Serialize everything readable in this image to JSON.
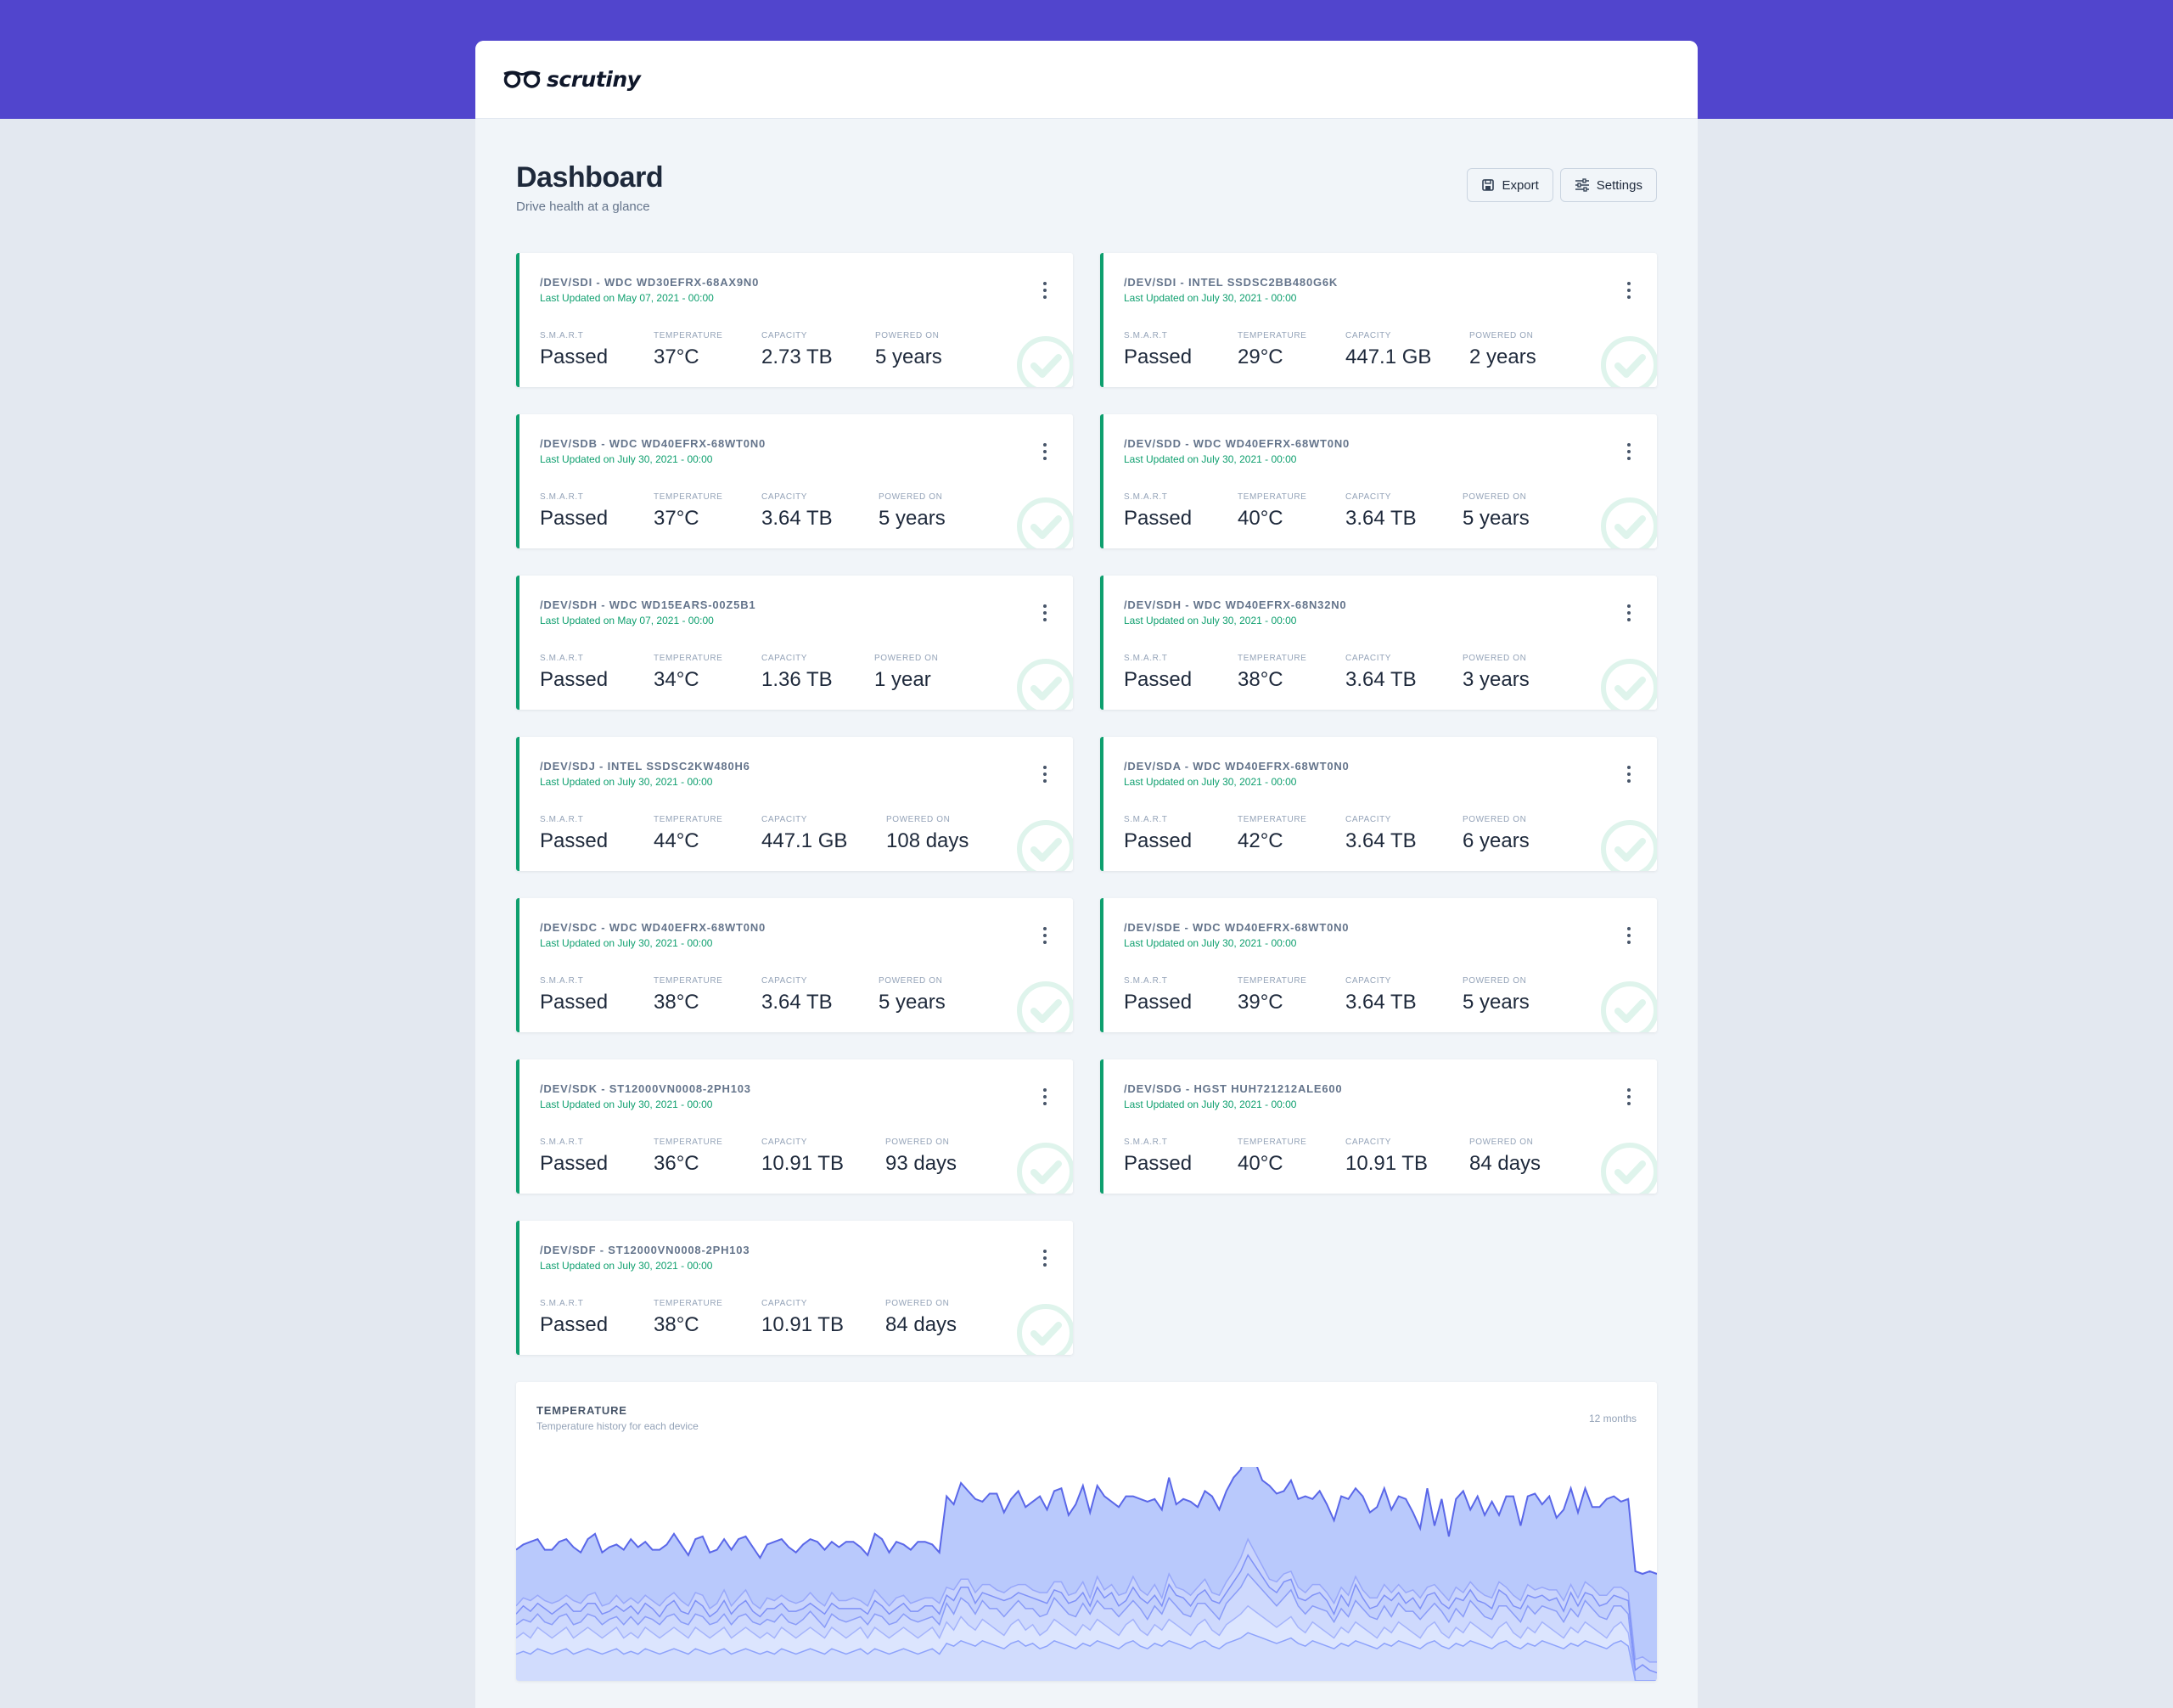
{
  "app": {
    "name": "scrutiny"
  },
  "page": {
    "title": "Dashboard",
    "subtitle": "Drive health at a glance"
  },
  "toolbar": {
    "export_label": "Export",
    "settings_label": "Settings"
  },
  "stat_labels": {
    "smart": "S.M.A.R.T",
    "temperature": "TEMPERATURE",
    "capacity": "CAPACITY",
    "powered_on": "POWERED ON"
  },
  "colors": {
    "accent": "#5145cd",
    "passed": "#0e9f6e",
    "chart_fill": "#a4bafc",
    "chart_line": "#6875f5"
  },
  "drives": [
    {
      "title": "/DEV/SDI - WDC WD30EFRX-68AX9N0",
      "updated": "Last Updated on May 07, 2021 - 00:00",
      "smart": "Passed",
      "temperature": "37°C",
      "capacity": "2.73 TB",
      "powered_on": "5 years"
    },
    {
      "title": "/DEV/SDI - INTEL SSDSC2BB480G6K",
      "updated": "Last Updated on July 30, 2021 - 00:00",
      "smart": "Passed",
      "temperature": "29°C",
      "capacity": "447.1 GB",
      "powered_on": "2 years"
    },
    {
      "title": "/DEV/SDB - WDC WD40EFRX-68WT0N0",
      "updated": "Last Updated on July 30, 2021 - 00:00",
      "smart": "Passed",
      "temperature": "37°C",
      "capacity": "3.64 TB",
      "powered_on": "5 years"
    },
    {
      "title": "/DEV/SDD - WDC WD40EFRX-68WT0N0",
      "updated": "Last Updated on July 30, 2021 - 00:00",
      "smart": "Passed",
      "temperature": "40°C",
      "capacity": "3.64 TB",
      "powered_on": "5 years"
    },
    {
      "title": "/DEV/SDH - WDC WD15EARS-00Z5B1",
      "updated": "Last Updated on May 07, 2021 - 00:00",
      "smart": "Passed",
      "temperature": "34°C",
      "capacity": "1.36 TB",
      "powered_on": "1 year"
    },
    {
      "title": "/DEV/SDH - WDC WD40EFRX-68N32N0",
      "updated": "Last Updated on July 30, 2021 - 00:00",
      "smart": "Passed",
      "temperature": "38°C",
      "capacity": "3.64 TB",
      "powered_on": "3 years"
    },
    {
      "title": "/DEV/SDJ - INTEL SSDSC2KW480H6",
      "updated": "Last Updated on July 30, 2021 - 00:00",
      "smart": "Passed",
      "temperature": "44°C",
      "capacity": "447.1 GB",
      "powered_on": "108 days"
    },
    {
      "title": "/DEV/SDA - WDC WD40EFRX-68WT0N0",
      "updated": "Last Updated on July 30, 2021 - 00:00",
      "smart": "Passed",
      "temperature": "42°C",
      "capacity": "3.64 TB",
      "powered_on": "6 years"
    },
    {
      "title": "/DEV/SDC - WDC WD40EFRX-68WT0N0",
      "updated": "Last Updated on July 30, 2021 - 00:00",
      "smart": "Passed",
      "temperature": "38°C",
      "capacity": "3.64 TB",
      "powered_on": "5 years"
    },
    {
      "title": "/DEV/SDE - WDC WD40EFRX-68WT0N0",
      "updated": "Last Updated on July 30, 2021 - 00:00",
      "smart": "Passed",
      "temperature": "39°C",
      "capacity": "3.64 TB",
      "powered_on": "5 years"
    },
    {
      "title": "/DEV/SDK - ST12000VN0008-2PH103",
      "updated": "Last Updated on July 30, 2021 - 00:00",
      "smart": "Passed",
      "temperature": "36°C",
      "capacity": "10.91 TB",
      "powered_on": "93 days"
    },
    {
      "title": "/DEV/SDG - HGST HUH721212ALE600",
      "updated": "Last Updated on July 30, 2021 - 00:00",
      "smart": "Passed",
      "temperature": "40°C",
      "capacity": "10.91 TB",
      "powered_on": "84 days"
    },
    {
      "title": "/DEV/SDF - ST12000VN0008-2PH103",
      "updated": "Last Updated on July 30, 2021 - 00:00",
      "smart": "Passed",
      "temperature": "38°C",
      "capacity": "10.91 TB",
      "powered_on": "84 days"
    }
  ],
  "temperature_panel": {
    "title": "TEMPERATURE",
    "subtitle": "Temperature history for each device",
    "range_label": "12 months"
  },
  "chart_data": {
    "type": "area",
    "title": "TEMPERATURE",
    "subtitle": "Temperature history for each device",
    "stacked": true,
    "grid": false,
    "legend": "none",
    "points": 160,
    "series": [
      {
        "values": [
          10,
          11,
          10,
          12,
          11,
          10,
          11,
          12,
          10,
          11,
          12,
          11,
          10,
          11,
          12,
          10,
          11,
          10,
          12,
          11,
          10,
          11,
          12,
          11,
          10,
          12,
          11,
          10,
          11,
          12,
          10,
          11,
          12,
          11,
          10,
          11,
          10,
          12,
          11,
          10,
          11,
          12,
          11,
          10,
          12,
          11,
          10,
          11,
          12,
          10,
          12,
          11,
          10,
          11,
          12,
          11,
          10,
          11,
          12,
          10,
          14,
          13,
          15,
          14,
          13,
          15,
          14,
          13,
          12,
          14,
          15,
          13,
          14,
          12,
          13,
          15,
          14,
          13,
          12,
          14,
          13,
          15,
          14,
          13,
          12,
          14,
          15,
          13,
          12,
          14,
          13,
          15,
          14,
          13,
          12,
          14,
          15,
          13,
          12,
          14,
          15,
          16,
          18,
          17,
          16,
          15,
          14,
          15,
          16,
          14,
          13,
          15,
          14,
          13,
          12,
          14,
          13,
          15,
          14,
          13,
          12,
          14,
          13,
          15,
          14,
          13,
          12,
          14,
          15,
          13,
          12,
          14,
          13,
          15,
          14,
          13,
          12,
          14,
          15,
          13,
          12,
          14,
          13,
          15,
          14,
          13,
          12,
          14,
          13,
          15,
          14,
          13,
          12,
          14,
          15,
          13
        ]
      },
      {
        "values": [
          6,
          7,
          6,
          8,
          7,
          6,
          7,
          8,
          6,
          7,
          8,
          7,
          6,
          7,
          8,
          6,
          7,
          6,
          8,
          7,
          6,
          7,
          8,
          7,
          6,
          8,
          7,
          6,
          7,
          8,
          6,
          7,
          8,
          7,
          6,
          7,
          6,
          8,
          7,
          6,
          7,
          8,
          7,
          6,
          8,
          7,
          6,
          7,
          8,
          6,
          8,
          7,
          6,
          7,
          8,
          7,
          6,
          7,
          8,
          6,
          8,
          6,
          9,
          7,
          6,
          8,
          7,
          6,
          5,
          7,
          8,
          6,
          7,
          5,
          6,
          8,
          7,
          6,
          5,
          7,
          6,
          8,
          7,
          6,
          5,
          7,
          8,
          6,
          5,
          7,
          6,
          8,
          7,
          6,
          5,
          7,
          8,
          6,
          5,
          7,
          8,
          9,
          10,
          9,
          8,
          7,
          6,
          7,
          8,
          6,
          5,
          7,
          6,
          5,
          4,
          6,
          5,
          7,
          6,
          5,
          4,
          6,
          5,
          7,
          6,
          5,
          4,
          6,
          7,
          5,
          4,
          6,
          5,
          7,
          6,
          5,
          4,
          6,
          7,
          5,
          4,
          6,
          5,
          7,
          6,
          5,
          4,
          6,
          5,
          7,
          6,
          5,
          4,
          6,
          7,
          5
        ]
      },
      {
        "values": [
          5,
          5,
          6,
          5,
          4,
          5,
          6,
          5,
          5,
          4,
          5,
          6,
          5,
          5,
          4,
          5,
          6,
          5,
          4,
          5,
          5,
          6,
          5,
          4,
          5,
          5,
          6,
          5,
          4,
          5,
          5,
          6,
          5,
          4,
          5,
          5,
          6,
          5,
          4,
          5,
          5,
          6,
          5,
          4,
          5,
          5,
          6,
          5,
          4,
          5,
          5,
          6,
          5,
          4,
          5,
          5,
          6,
          5,
          4,
          5,
          7,
          6,
          7,
          8,
          6,
          7,
          6,
          8,
          7,
          6,
          7,
          8,
          6,
          7,
          6,
          8,
          7,
          6,
          7,
          8,
          6,
          7,
          6,
          8,
          7,
          6,
          7,
          8,
          6,
          7,
          6,
          8,
          7,
          6,
          7,
          8,
          6,
          7,
          6,
          8,
          9,
          10,
          12,
          11,
          10,
          9,
          8,
          9,
          10,
          8,
          7,
          6,
          7,
          8,
          6,
          7,
          6,
          8,
          7,
          6,
          7,
          8,
          6,
          7,
          6,
          8,
          7,
          6,
          7,
          8,
          6,
          7,
          6,
          8,
          7,
          6,
          7,
          8,
          6,
          7,
          6,
          8,
          7,
          6,
          7,
          8,
          6,
          7,
          6,
          8,
          7,
          6,
          7,
          8,
          6,
          7
        ]
      },
      {
        "values": [
          4,
          5,
          4,
          4,
          5,
          4,
          3,
          4,
          5,
          4,
          4,
          5,
          4,
          3,
          4,
          5,
          4,
          4,
          5,
          4,
          3,
          4,
          5,
          4,
          4,
          5,
          4,
          3,
          4,
          5,
          4,
          4,
          5,
          4,
          3,
          4,
          5,
          4,
          4,
          5,
          4,
          3,
          4,
          5,
          4,
          4,
          5,
          4,
          3,
          4,
          5,
          4,
          4,
          5,
          4,
          3,
          4,
          5,
          4,
          4,
          3,
          5,
          4,
          6,
          4,
          3,
          5,
          4,
          6,
          4,
          3,
          5,
          4,
          6,
          4,
          3,
          5,
          4,
          6,
          4,
          3,
          5,
          4,
          6,
          4,
          3,
          5,
          4,
          6,
          4,
          3,
          5,
          4,
          6,
          4,
          3,
          5,
          4,
          6,
          4,
          5,
          6,
          7,
          6,
          5,
          4,
          5,
          6,
          4,
          3,
          5,
          4,
          6,
          4,
          3,
          5,
          4,
          6,
          4,
          3,
          5,
          4,
          6,
          4,
          3,
          5,
          4,
          6,
          4,
          3,
          5,
          4,
          6,
          4,
          3,
          5,
          4,
          6,
          4,
          3,
          5,
          4,
          6,
          4,
          3,
          5,
          4,
          6,
          4,
          3,
          5,
          4,
          6,
          4,
          3,
          5,
          4,
          6,
          4,
          3
        ]
      },
      {
        "values": [
          3,
          3,
          4,
          3,
          3,
          4,
          3,
          3,
          4,
          3,
          3,
          4,
          3,
          3,
          4,
          3,
          3,
          4,
          3,
          3,
          4,
          3,
          3,
          4,
          3,
          3,
          4,
          3,
          3,
          4,
          3,
          3,
          4,
          3,
          3,
          4,
          3,
          3,
          4,
          3,
          3,
          4,
          3,
          3,
          4,
          3,
          3,
          4,
          3,
          3,
          4,
          3,
          3,
          4,
          3,
          3,
          4,
          3,
          3,
          4,
          3,
          4,
          3,
          3,
          4,
          3,
          4,
          3,
          3,
          4,
          3,
          4,
          3,
          3,
          4,
          3,
          4,
          3,
          3,
          4,
          3,
          4,
          3,
          3,
          4,
          3,
          4,
          3,
          3,
          4,
          3,
          4,
          3,
          3,
          4,
          3,
          4,
          3,
          3,
          4,
          4,
          5,
          6,
          5,
          4,
          3,
          4,
          3,
          3,
          4,
          3,
          4,
          3,
          3,
          4,
          3,
          4,
          3,
          3,
          4,
          3,
          4,
          3,
          3,
          4,
          3,
          4,
          3,
          3,
          4,
          3,
          4,
          3,
          3,
          4,
          3,
          4,
          3,
          3,
          4,
          3,
          4,
          3,
          3,
          4,
          3,
          4,
          3,
          3,
          4,
          3,
          4,
          3,
          3,
          4,
          3,
          4,
          3,
          3,
          4
        ]
      },
      {
        "values": [
          21,
          20,
          22,
          21,
          19,
          20,
          22,
          21,
          20,
          19,
          21,
          22,
          20,
          21,
          19,
          20,
          22,
          21,
          20,
          19,
          21,
          20,
          22,
          21,
          19,
          20,
          22,
          21,
          20,
          19,
          21,
          22,
          20,
          21,
          19,
          20,
          22,
          21,
          20,
          19,
          21,
          20,
          22,
          21,
          19,
          20,
          22,
          21,
          20,
          19,
          21,
          22,
          20,
          21,
          19,
          20,
          22,
          21,
          20,
          19,
          34,
          32,
          36,
          33,
          35,
          31,
          34,
          36,
          30,
          33,
          35,
          29,
          33,
          36,
          31,
          34,
          35,
          30,
          33,
          36,
          32,
          34,
          35,
          31,
          33,
          36,
          30,
          34,
          35,
          32,
          33,
          36,
          31,
          34,
          35,
          30,
          33,
          36,
          32,
          34,
          35,
          33,
          36,
          34,
          32,
          35,
          33,
          31,
          34,
          33,
          36,
          32,
          35,
          33,
          31,
          34,
          36,
          33,
          35,
          32,
          34,
          36,
          31,
          33,
          35,
          29,
          26,
          37,
          22,
          35,
          24,
          33,
          38,
          27,
          35,
          30,
          36,
          25,
          34,
          37,
          28,
          33,
          36,
          31,
          35,
          27,
          34,
          36,
          32,
          35,
          30,
          33,
          36,
          34,
          32,
          35,
          33,
          31,
          34,
          33
        ]
      }
    ]
  }
}
